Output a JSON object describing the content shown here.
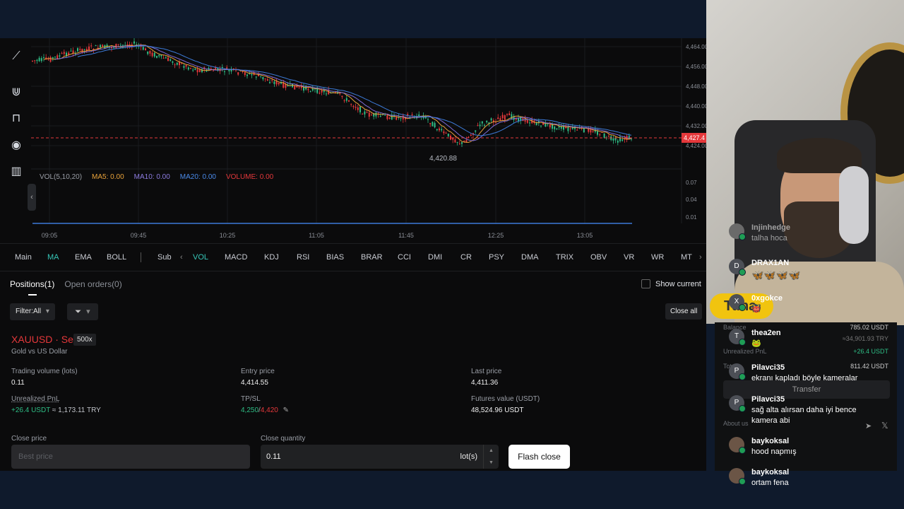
{
  "chart": {
    "price_ticks": [
      "4,464.00",
      "4,456.00",
      "4,448.00",
      "4,440.00",
      "4,432.00",
      "4,424.00"
    ],
    "current_price": "4,427.4",
    "low_label": "4,420.88",
    "time_ticks": [
      "09:05",
      "09:45",
      "10:25",
      "11:05",
      "11:45",
      "12:25",
      "13:05"
    ],
    "vol_ticks": [
      "0.07",
      "0.04",
      "0.01"
    ],
    "colors": {
      "up": "#2ebd85",
      "down": "#e5383b",
      "ma5": "#e8a23a",
      "ma10": "#7d6cd6",
      "ma20": "#3d7bd9",
      "volume": "#e5383b"
    },
    "volume_legend": {
      "label": "VOL(5,10,20)",
      "ma5": "MA5: 0.00",
      "ma10": "MA10: 0.00",
      "ma20": "MA20: 0.00",
      "volume": "VOLUME: 0.00"
    }
  },
  "sidebar_tools": [
    "trend-tool-icon",
    "magnet-icon",
    "lock-icon",
    "eye-icon",
    "trash-icon"
  ],
  "indicators": {
    "main_label": "Main",
    "main": [
      "MA",
      "EMA",
      "BOLL"
    ],
    "sub_label": "Sub",
    "sub": [
      "VOL",
      "MACD",
      "KDJ",
      "RSI",
      "BIAS",
      "BRAR",
      "CCI",
      "DMI",
      "CR",
      "PSY",
      "DMA",
      "TRIX",
      "OBV",
      "VR",
      "WR",
      "MT"
    ]
  },
  "positions": {
    "tabs": [
      "Positions(1)",
      "Open orders(0)"
    ],
    "show_current": "Show current",
    "filter": "Filter:All",
    "close_all": "Close all",
    "symbol": "XAUUSD · Sell",
    "leverage": "500x",
    "subtitle": "Gold vs US Dollar",
    "trading_volume_label": "Trading volume (lots)",
    "trading_volume": "0.11",
    "entry_price_label": "Entry price",
    "entry_price": "4,414.55",
    "last_price_label": "Last price",
    "last_price": "4,411.36",
    "pnl_label": "Unrealized PnL",
    "pnl_usdt": "+26.4 USDT",
    "pnl_try": "≈ 1,173.11 TRY",
    "tpsl_label": "TP/SL",
    "tp": "4,250",
    "sl": "4,420",
    "futures_value_label": "Futures value (USDT)",
    "futures_value": "48,524.96 USDT",
    "close_price_label": "Close price",
    "close_price_placeholder": "Best price",
    "close_qty_label": "Close quantity",
    "close_qty": "0.11",
    "close_qty_unit": "lot(s)",
    "flash_close": "Flash close"
  },
  "balance_panel": {
    "balance_label": "Balance",
    "balance": "785.02 USDT",
    "balance_try": "≈34,901.93 TRY",
    "unrealized_label": "Unrealized PnL",
    "unrealized": "+26.4 USDT",
    "total_label": "Total",
    "total": "811.42 USDT",
    "transfer": "Transfer",
    "about": "About us"
  },
  "stream": {
    "sticker": "Tuna"
  },
  "chat": [
    {
      "initial": "",
      "user": "Injinhedge",
      "msg": "talha hoca",
      "faded": true
    },
    {
      "initial": "D",
      "user": "DRAX1AN",
      "msg": "🦋🦋🦋🦋",
      "faded": false
    },
    {
      "initial": "X",
      "user": "0xgokce",
      "msg": "👹",
      "faded": false
    },
    {
      "initial": "T",
      "user": "thea2en",
      "msg": "🐸",
      "faded": false
    },
    {
      "initial": "P",
      "user": "Pilavci35",
      "msg": "ekranı kapladı böyle kameralar",
      "faded": false
    },
    {
      "initial": "P",
      "user": "Pilavci35",
      "msg": "sağ alta alırsan daha iyi bence",
      "msg2": "kamera abi",
      "faded": false
    },
    {
      "initial": "",
      "user": "baykoksal",
      "msg": "hood napmış",
      "faded": false
    },
    {
      "initial": "",
      "user": "baykoksal",
      "msg": "ortam fena",
      "faded": false
    }
  ]
}
